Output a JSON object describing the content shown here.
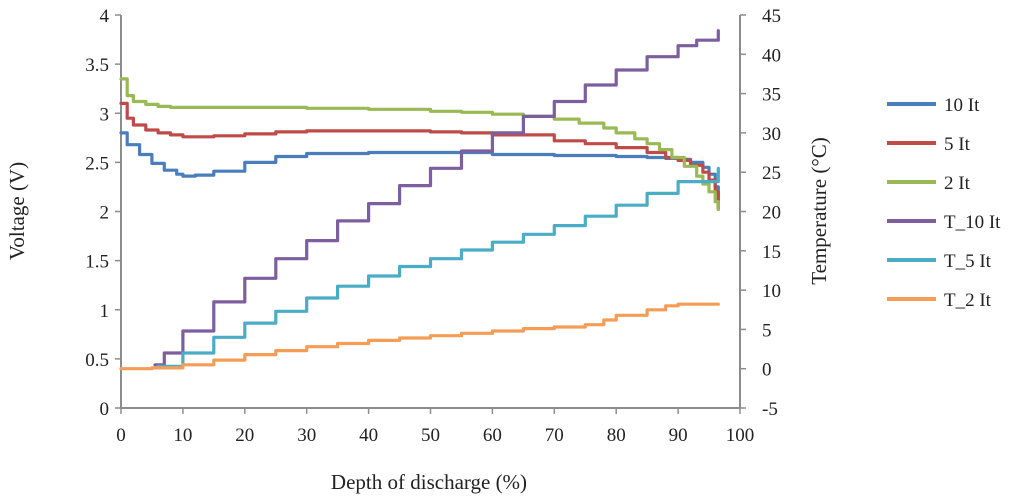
{
  "chart_data": {
    "type": "line",
    "title": "",
    "xlabel": "Depth of discharge (%)",
    "ylabel": "Voltage (V)",
    "y2label": "Temperature (°C)",
    "xlim": [
      0,
      100
    ],
    "ylim": [
      0,
      4
    ],
    "y2lim": [
      -5,
      45
    ],
    "x_ticks": [
      "0",
      "10",
      "20",
      "30",
      "40",
      "50",
      "60",
      "70",
      "80",
      "90",
      "100"
    ],
    "y_ticks": [
      "0",
      "0.5",
      "1",
      "1.5",
      "2",
      "2.5",
      "3",
      "3.5",
      "4"
    ],
    "y2_ticks": [
      "-5",
      "0",
      "5",
      "10",
      "15",
      "20",
      "25",
      "30",
      "35",
      "40",
      "45"
    ],
    "grid": false,
    "legend_position": "right",
    "series": [
      {
        "name": "10 It",
        "axis": "left",
        "color": "#4a7ebb",
        "step": true,
        "x": [
          0,
          1,
          3,
          5,
          7,
          9,
          10,
          12,
          15,
          20,
          25,
          30,
          40,
          50,
          60,
          70,
          80,
          85,
          88,
          90,
          92,
          94,
          95,
          96,
          96.5
        ],
        "y": [
          2.8,
          2.68,
          2.58,
          2.49,
          2.42,
          2.38,
          2.36,
          2.37,
          2.41,
          2.5,
          2.56,
          2.59,
          2.6,
          2.6,
          2.58,
          2.57,
          2.56,
          2.55,
          2.54,
          2.53,
          2.5,
          2.45,
          2.38,
          2.25,
          2.05
        ]
      },
      {
        "name": "5 It",
        "axis": "left",
        "color": "#be4b48",
        "step": true,
        "x": [
          0,
          1,
          2,
          4,
          6,
          8,
          10,
          12,
          15,
          20,
          25,
          30,
          40,
          50,
          55,
          60,
          70,
          75,
          80,
          85,
          88,
          90,
          92,
          94,
          95,
          96,
          96.5
        ],
        "y": [
          3.1,
          2.95,
          2.88,
          2.83,
          2.8,
          2.78,
          2.76,
          2.76,
          2.77,
          2.79,
          2.81,
          2.82,
          2.82,
          2.81,
          2.8,
          2.78,
          2.72,
          2.69,
          2.65,
          2.6,
          2.55,
          2.52,
          2.47,
          2.4,
          2.32,
          2.2,
          2.03
        ]
      },
      {
        "name": "2 It",
        "axis": "left",
        "color": "#98b954",
        "step": true,
        "x": [
          0,
          1,
          2,
          4,
          6,
          8,
          10,
          20,
          30,
          40,
          50,
          55,
          60,
          65,
          70,
          74,
          78,
          80,
          83,
          85,
          87,
          89,
          91,
          93,
          94,
          95,
          96,
          96.5
        ],
        "y": [
          3.35,
          3.18,
          3.12,
          3.09,
          3.07,
          3.06,
          3.06,
          3.06,
          3.05,
          3.04,
          3.02,
          3.01,
          2.99,
          2.97,
          2.94,
          2.9,
          2.85,
          2.8,
          2.74,
          2.69,
          2.63,
          2.55,
          2.46,
          2.36,
          2.28,
          2.2,
          2.1,
          2.02
        ]
      },
      {
        "name": "T_10 It",
        "axis": "right",
        "color": "#7d5fa0",
        "step": true,
        "x": [
          5.5,
          7,
          10,
          15,
          20,
          25,
          30,
          35,
          40,
          45,
          50,
          55,
          60,
          65,
          70,
          75,
          80,
          85,
          90,
          93,
          96.5
        ],
        "y": [
          0.5,
          2,
          4.8,
          8.5,
          11.5,
          14,
          16.3,
          18.8,
          21,
          23.3,
          25.5,
          27.7,
          30,
          32.1,
          34,
          36.1,
          38,
          39.7,
          41.1,
          41.8,
          43
        ]
      },
      {
        "name": "T_5 It",
        "axis": "right",
        "color": "#4bacc6",
        "step": true,
        "x": [
          6,
          10,
          15,
          20,
          25,
          30,
          35,
          40,
          45,
          50,
          55,
          60,
          65,
          70,
          75,
          80,
          85,
          90,
          96.5
        ],
        "y": [
          0.3,
          2,
          4,
          5.8,
          7.3,
          9,
          10.5,
          11.8,
          13,
          14,
          15.1,
          16.1,
          17.1,
          18.2,
          19.4,
          20.8,
          22.3,
          23.8,
          25.5
        ]
      },
      {
        "name": "T_2 It",
        "axis": "right",
        "color": "#f59d56",
        "step": true,
        "x": [
          0,
          5,
          10,
          15,
          20,
          25,
          30,
          35,
          40,
          45,
          50,
          55,
          60,
          65,
          70,
          75,
          78,
          80,
          85,
          88,
          90,
          93,
          96.5
        ],
        "y": [
          0,
          0.1,
          0.5,
          1.1,
          1.8,
          2.3,
          2.8,
          3.2,
          3.6,
          3.9,
          4.2,
          4.5,
          4.8,
          5.1,
          5.3,
          5.6,
          6.2,
          6.8,
          7.5,
          8,
          8.2,
          8.2,
          8.2
        ]
      }
    ]
  }
}
